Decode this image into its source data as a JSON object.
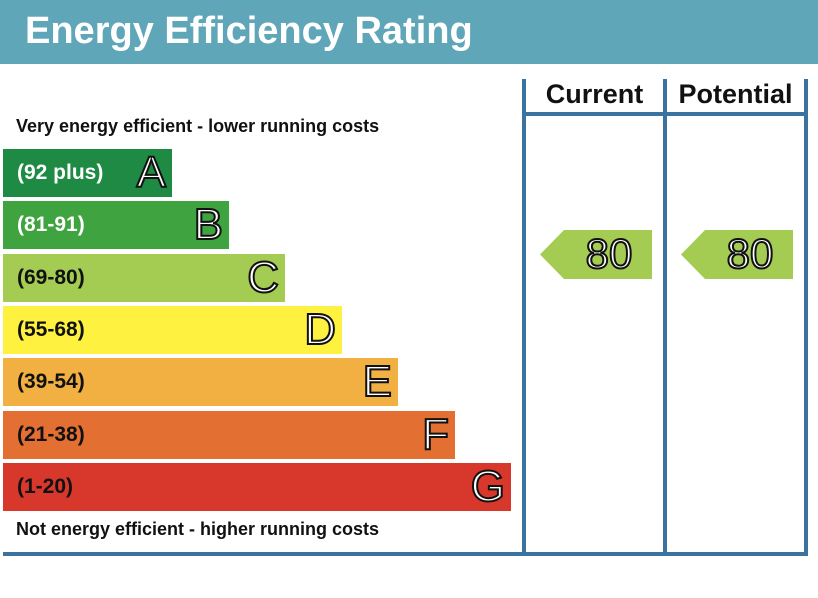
{
  "title": "Energy Efficiency Rating",
  "captions": {
    "top": "Very energy efficient - lower running costs",
    "bottom": "Not energy efficient - higher running costs"
  },
  "columns": {
    "current": "Current",
    "potential": "Potential"
  },
  "bands": [
    {
      "range": "(92 plus)",
      "letter": "A",
      "color": "#1e8a43",
      "text_color": "#ffffff"
    },
    {
      "range": "(81-91)",
      "letter": "B",
      "color": "#3fa33f",
      "text_color": "#ffffff"
    },
    {
      "range": "(69-80)",
      "letter": "C",
      "color": "#a5cc52",
      "text_color": "#111111"
    },
    {
      "range": "(55-68)",
      "letter": "D",
      "color": "#fff13f",
      "text_color": "#111111"
    },
    {
      "range": "(39-54)",
      "letter": "E",
      "color": "#f2b043",
      "text_color": "#111111"
    },
    {
      "range": "(21-38)",
      "letter": "F",
      "color": "#e36f32",
      "text_color": "#111111"
    },
    {
      "range": "(1-20)",
      "letter": "G",
      "color": "#d8382b",
      "text_color": "#111111"
    }
  ],
  "ratings": {
    "current": {
      "value": "80",
      "band": "C",
      "color": "#a5cc52"
    },
    "potential": {
      "value": "80",
      "band": "C",
      "color": "#a5cc52"
    }
  },
  "colors": {
    "header_bg": "#5fa6b8",
    "frame": "#3a73a0"
  }
}
